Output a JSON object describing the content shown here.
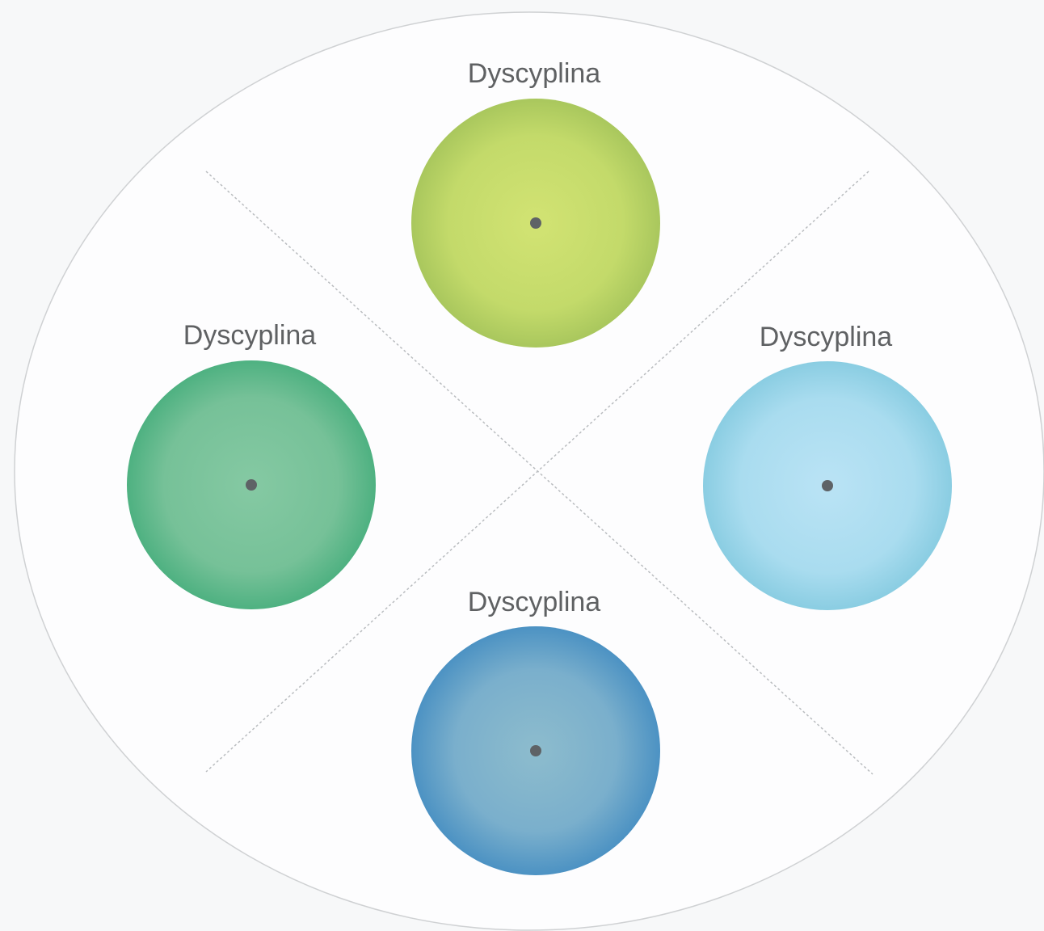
{
  "nodes": [
    {
      "label": "Dyscyplina"
    },
    {
      "label": "Dyscyplina"
    },
    {
      "label": "Dyscyplina"
    },
    {
      "label": "Dyscyplina"
    }
  ]
}
